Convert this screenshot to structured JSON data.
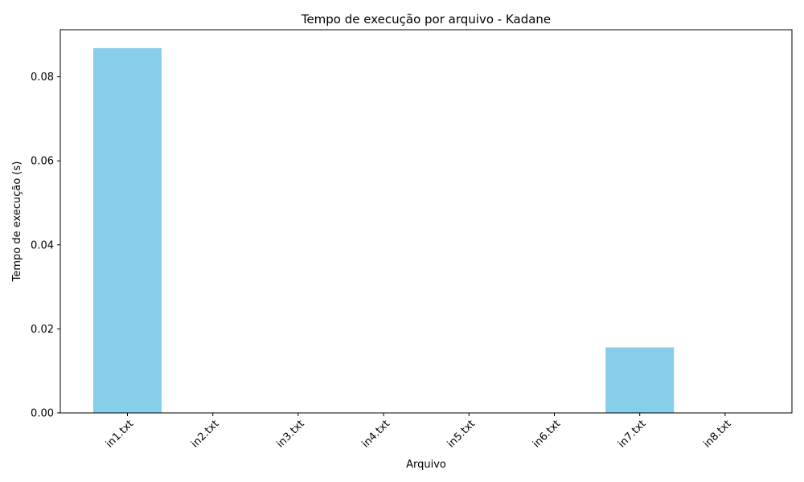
{
  "chart_data": {
    "type": "bar",
    "title": "Tempo de execução por arquivo - Kadane",
    "xlabel": "Arquivo",
    "ylabel": "Tempo de execução (s)",
    "categories": [
      "in1.txt",
      "in2.txt",
      "in3.txt",
      "in4.txt",
      "in5.txt",
      "in6.txt",
      "in7.txt",
      "in8.txt"
    ],
    "values": [
      0.0868,
      0,
      0,
      0,
      0,
      0,
      0.0156,
      0
    ],
    "ylim": [
      0,
      0.0912
    ],
    "yticks": [
      0.0,
      0.02,
      0.04,
      0.06,
      0.08
    ],
    "ytick_labels": [
      "0.00",
      "0.02",
      "0.04",
      "0.06",
      "0.08"
    ],
    "bar_color": "#87ceeb",
    "grid": false,
    "xtick_rotation_deg": 45
  }
}
